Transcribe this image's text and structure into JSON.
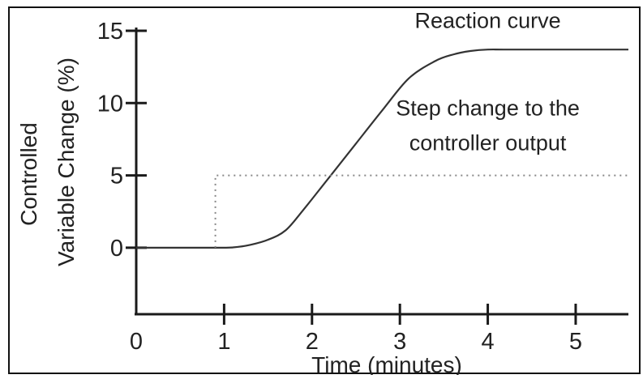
{
  "chart_data": {
    "type": "line",
    "title": "",
    "xlabel": "Time (minutes)",
    "ylabel_lines": [
      "Controlled",
      "Variable Change (%)"
    ],
    "xlim": [
      0,
      5.6
    ],
    "ylim": [
      -4.6,
      15
    ],
    "x_ticks": [
      "0",
      "1",
      "2",
      "3",
      "4",
      "5"
    ],
    "x_tick_values": [
      0,
      1,
      2,
      3,
      4,
      5
    ],
    "y_ticks": [
      "0",
      "5",
      "10",
      "15"
    ],
    "y_tick_values": [
      0,
      5,
      10,
      15
    ],
    "grid": false,
    "series": [
      {
        "name": "Reaction curve",
        "style": "solid",
        "color": "#333333",
        "x": [
          0,
          0.9,
          1.1,
          1.3,
          1.5,
          1.7,
          1.9,
          2.2,
          2.5,
          2.8,
          3.1,
          3.4,
          3.6,
          3.8,
          4.0,
          4.3,
          5.6
        ],
        "y": [
          0,
          0,
          0.02,
          0.2,
          0.55,
          1.2,
          2.6,
          4.9,
          7.2,
          9.5,
          11.7,
          12.9,
          13.35,
          13.6,
          13.7,
          13.7,
          13.7
        ]
      },
      {
        "name": "Step change to the controller output",
        "style": "dotted",
        "color": "#888888",
        "x": [
          0.9,
          0.9,
          5.6
        ],
        "y": [
          0,
          5,
          5
        ]
      }
    ],
    "annotations": [
      {
        "text": "Reaction curve",
        "x": 4.0,
        "y": 15.2,
        "anchor": "middle"
      },
      {
        "text": "Step change to the",
        "x": 4.0,
        "y": 9.15,
        "anchor": "middle"
      },
      {
        "text": "controller output",
        "x": 4.0,
        "y": 6.75,
        "anchor": "middle"
      }
    ]
  }
}
